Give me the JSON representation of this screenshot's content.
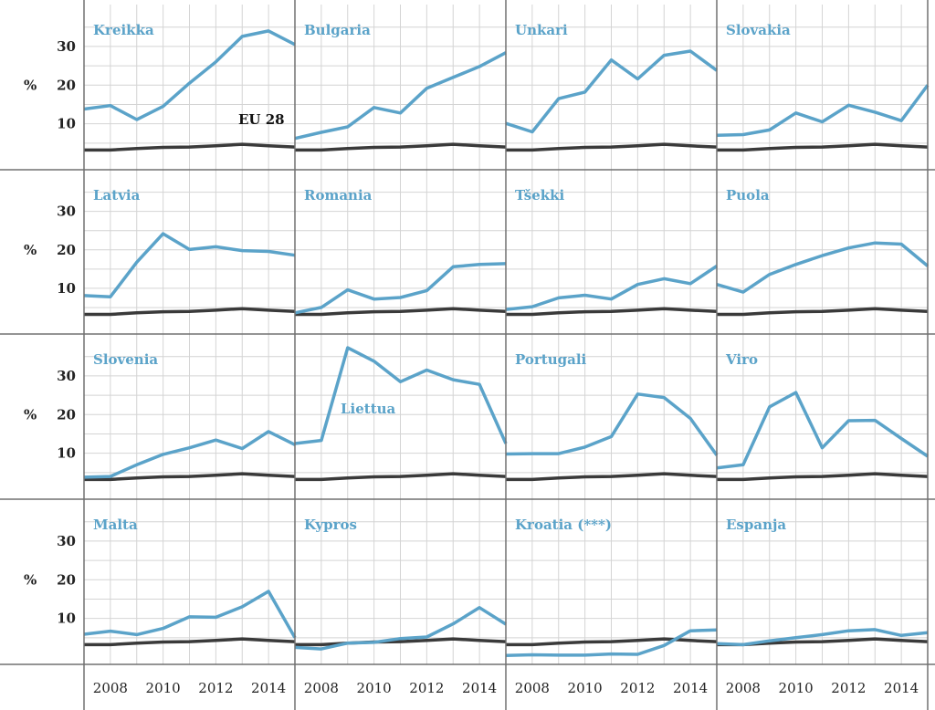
{
  "chart_data": {
    "type": "line",
    "layout": "small-multiples-4x4",
    "y_unit_label": "%",
    "yticks": [
      10,
      20,
      30
    ],
    "ylim": [
      0,
      38
    ],
    "xlim": [
      2007,
      2015
    ],
    "xticks": [
      2008,
      2010,
      2012,
      2014
    ],
    "x": [
      2007,
      2008,
      2009,
      2010,
      2011,
      2012,
      2013,
      2014,
      2015
    ],
    "grid": true,
    "colors": {
      "country": "#5ba3c9",
      "eu": "#3a3a3a",
      "frame": "#707070",
      "grid": "#d4d4d4"
    },
    "reference_series": {
      "name": "EU 28",
      "values": [
        3.2,
        3.2,
        3.6,
        3.9,
        4.0,
        4.3,
        4.7,
        4.3,
        4.0
      ]
    },
    "panels": [
      {
        "name": "Kreikka",
        "values": [
          13.8,
          14.7,
          11.1,
          14.5,
          20.5,
          26.0,
          32.6,
          34.0,
          30.5
        ],
        "label_below": false
      },
      {
        "name": "Bulgaria",
        "values": [
          6.2,
          7.8,
          9.2,
          14.2,
          12.8,
          19.2,
          22.0,
          24.8,
          28.4
        ],
        "label_below": false
      },
      {
        "name": "Unkari",
        "values": [
          10.1,
          7.9,
          16.5,
          18.2,
          26.5,
          21.6,
          27.7,
          28.8,
          23.8
        ],
        "label_below": false
      },
      {
        "name": "Slovakia",
        "values": [
          7.0,
          7.2,
          8.4,
          12.8,
          10.5,
          14.8,
          13.0,
          10.8,
          20.0
        ],
        "label_below": false
      },
      {
        "name": "Latvia",
        "values": [
          8.1,
          7.8,
          16.8,
          24.2,
          20.1,
          20.8,
          19.8,
          19.6,
          18.6
        ],
        "label_below": false
      },
      {
        "name": "Romania",
        "values": [
          3.6,
          5.0,
          9.6,
          7.2,
          7.6,
          9.4,
          15.6,
          16.2,
          16.4
        ],
        "label_below": false
      },
      {
        "name": "Tšekki",
        "values": [
          4.5,
          5.2,
          7.5,
          8.2,
          7.2,
          11.0,
          12.5,
          11.2,
          15.8
        ],
        "label_below": false
      },
      {
        "name": "Puola",
        "values": [
          11.0,
          9.0,
          13.6,
          16.2,
          18.5,
          20.5,
          21.8,
          21.5,
          15.8
        ],
        "label_below": false
      },
      {
        "name": "Slovenia",
        "values": [
          3.8,
          4.0,
          7.0,
          9.7,
          11.4,
          13.4,
          11.2,
          15.6,
          12.2
        ],
        "label_below": false
      },
      {
        "name": "Liettua",
        "values": [
          12.5,
          13.3,
          37.3,
          33.8,
          28.5,
          31.5,
          29.0,
          27.8,
          12.5
        ],
        "label_below": true
      },
      {
        "name": "Portugali",
        "values": [
          9.8,
          9.9,
          9.9,
          11.6,
          14.3,
          25.3,
          24.4,
          19.0,
          9.5
        ],
        "label_below": false
      },
      {
        "name": "Viro",
        "values": [
          6.2,
          7.0,
          22.0,
          25.7,
          11.4,
          18.4,
          18.5,
          13.8,
          9.2
        ],
        "label_below": false
      },
      {
        "name": "Malta",
        "values": [
          5.9,
          6.7,
          5.8,
          7.4,
          10.4,
          10.3,
          13.0,
          17.0,
          5.0
        ],
        "label_below": false
      },
      {
        "name": "Kypros",
        "values": [
          2.5,
          2.1,
          3.6,
          3.8,
          4.8,
          5.2,
          8.6,
          12.8,
          8.5
        ],
        "label_below": false
      },
      {
        "name": "Kroatia (***)",
        "values": [
          0.4,
          0.6,
          0.5,
          0.5,
          0.8,
          0.7,
          3.0,
          6.8,
          7.0
        ],
        "label_below": false
      },
      {
        "name": "Espanja",
        "values": [
          3.5,
          3.2,
          4.2,
          5.0,
          5.8,
          6.8,
          7.1,
          5.6,
          6.3
        ],
        "label_below": false
      }
    ]
  }
}
